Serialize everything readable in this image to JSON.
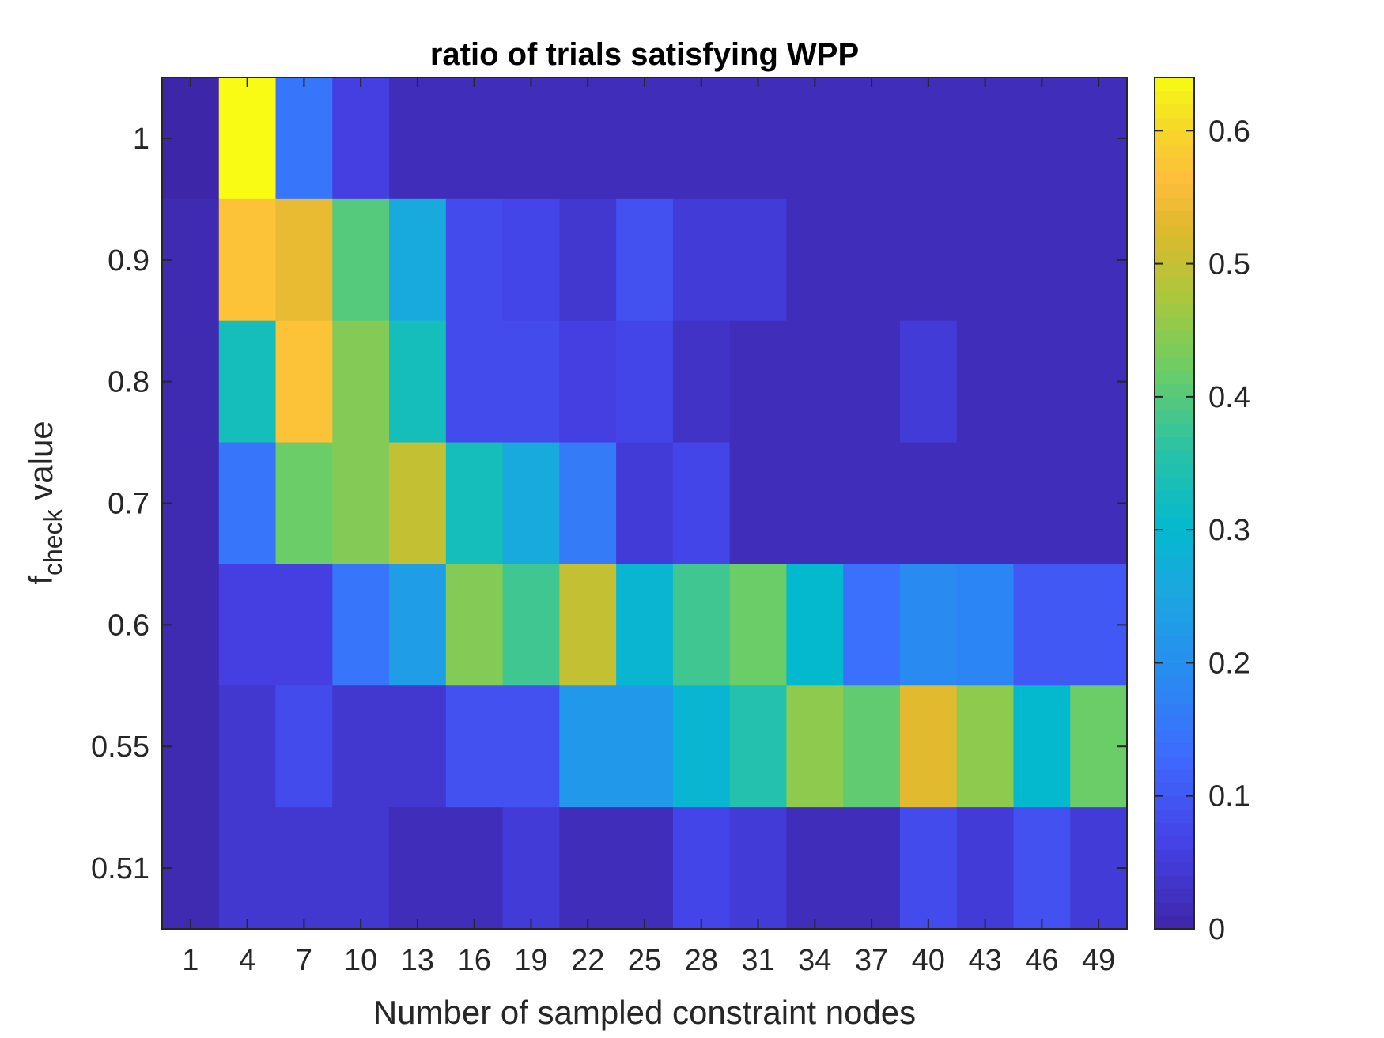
{
  "chart_data": {
    "type": "heatmap",
    "title": "ratio of trials satisfying WPP",
    "xlabel": "Number of sampled constraint nodes",
    "ylabel": {
      "main": "f",
      "subscript": "check",
      "suffix": " value"
    },
    "x_categories": [
      "1",
      "4",
      "7",
      "10",
      "13",
      "16",
      "19",
      "22",
      "25",
      "28",
      "31",
      "34",
      "37",
      "40",
      "43",
      "46",
      "49"
    ],
    "y_categories_top_to_bottom": [
      "1",
      "0.9",
      "0.8",
      "0.7",
      "0.6",
      "0.55",
      "0.51"
    ],
    "values": [
      [
        0.0,
        0.64,
        0.15,
        0.06,
        0.02,
        0.02,
        0.02,
        0.02,
        0.02,
        0.02,
        0.02,
        0.02,
        0.02,
        0.02,
        0.02,
        0.02,
        0.02
      ],
      [
        0.01,
        0.57,
        0.54,
        0.4,
        0.26,
        0.08,
        0.07,
        0.04,
        0.09,
        0.05,
        0.05,
        0.02,
        0.02,
        0.02,
        0.02,
        0.02,
        0.02
      ],
      [
        0.01,
        0.33,
        0.57,
        0.44,
        0.33,
        0.08,
        0.08,
        0.06,
        0.07,
        0.03,
        0.02,
        0.02,
        0.02,
        0.05,
        0.02,
        0.02,
        0.02
      ],
      [
        0.01,
        0.15,
        0.42,
        0.44,
        0.5,
        0.33,
        0.26,
        0.16,
        0.05,
        0.07,
        0.02,
        0.02,
        0.02,
        0.02,
        0.02,
        0.02,
        0.02
      ],
      [
        0.01,
        0.06,
        0.06,
        0.15,
        0.23,
        0.44,
        0.38,
        0.5,
        0.29,
        0.38,
        0.42,
        0.3,
        0.14,
        0.19,
        0.18,
        0.1,
        0.1
      ],
      [
        0.01,
        0.04,
        0.08,
        0.04,
        0.04,
        0.09,
        0.09,
        0.22,
        0.22,
        0.29,
        0.35,
        0.45,
        0.41,
        0.53,
        0.45,
        0.3,
        0.42
      ],
      [
        0.01,
        0.04,
        0.04,
        0.04,
        0.02,
        0.02,
        0.05,
        0.02,
        0.02,
        0.07,
        0.05,
        0.02,
        0.02,
        0.08,
        0.05,
        0.09,
        0.05
      ]
    ],
    "colorbar": {
      "min": 0,
      "max": 0.64,
      "colormap": "parula",
      "ticks": [
        0,
        0.1,
        0.2,
        0.3,
        0.4,
        0.5,
        0.6
      ],
      "tick_labels": [
        "0",
        "0.1",
        "0.2",
        "0.3",
        "0.4",
        "0.5",
        "0.6"
      ]
    }
  }
}
